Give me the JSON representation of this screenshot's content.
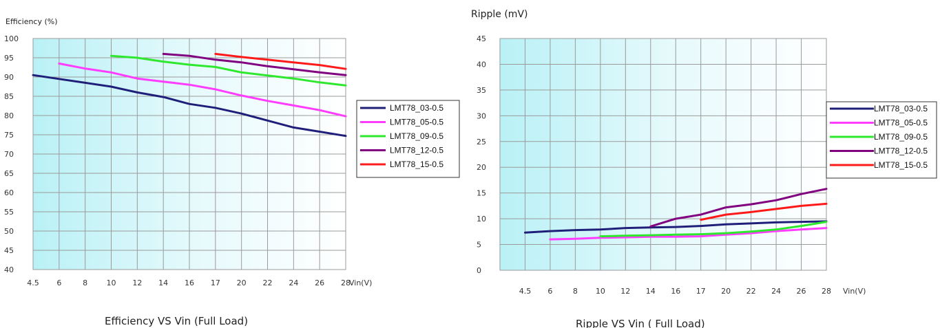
{
  "chart_data": [
    {
      "type": "line",
      "ylabel": "Efficiency (%)",
      "xlabel": "Vin(V)",
      "caption": "Efficiency VS Vin (Full Load)",
      "categories": [
        "4.5",
        "6",
        "8",
        "10",
        "12",
        "14",
        "16",
        "17",
        "20",
        "22",
        "24",
        "26",
        "28"
      ],
      "y_ticks": [
        100,
        95,
        90,
        85,
        80,
        75,
        70,
        65,
        60,
        55,
        50,
        45,
        40
      ],
      "ylim": [
        40,
        100
      ],
      "grid": true,
      "legend_position": "right",
      "series": [
        {
          "name": "LMT78_03-0.5",
          "color": "#1f1f7a",
          "x": [
            4.5,
            6,
            8,
            10,
            12,
            14,
            16,
            17,
            20,
            22,
            24,
            26,
            28
          ],
          "values": [
            90.5,
            89.5,
            88.5,
            87.5,
            86,
            84.8,
            83,
            82,
            80.5,
            78.7,
            76.9,
            75.8,
            74.7
          ]
        },
        {
          "name": "LMT78_05-0.5",
          "color": "#ff3cff",
          "x": [
            6,
            8,
            10,
            12,
            14,
            16,
            17,
            20,
            22,
            24,
            26,
            28
          ],
          "values": [
            93.5,
            92.2,
            91.2,
            89.6,
            88.8,
            88,
            86.8,
            85.2,
            83.8,
            82.6,
            81.4,
            79.8
          ]
        },
        {
          "name": "LMT78_09-0.5",
          "color": "#2ee82e",
          "x": [
            10,
            12,
            14,
            16,
            17,
            20,
            22,
            24,
            26,
            28
          ],
          "values": [
            95.5,
            95,
            94,
            93.2,
            92.6,
            91.2,
            90.4,
            89.6,
            88.6,
            87.8
          ]
        },
        {
          "name": "LMT78_12-0.5",
          "color": "#800080",
          "x": [
            14,
            16,
            17,
            20,
            22,
            24,
            26,
            28
          ],
          "values": [
            96,
            95.5,
            94.5,
            93.8,
            92.8,
            92,
            91.2,
            90.5
          ]
        },
        {
          "name": "LMT78_15-0.5",
          "color": "#ff1a1a",
          "x": [
            17,
            20,
            22,
            24,
            26,
            28
          ],
          "values": [
            96,
            95.2,
            94.5,
            93.8,
            93.1,
            92.1
          ]
        }
      ]
    },
    {
      "type": "line",
      "ylabel": "Ripple (mV)",
      "xlabel": "Vin(V)",
      "caption": "Ripple VS Vin ( Full Load)",
      "categories": [
        "4.5",
        "6",
        "8",
        "10",
        "12",
        "14",
        "16",
        "17",
        "20",
        "22",
        "24",
        "26",
        "28"
      ],
      "y_ticks": [
        45,
        40,
        35,
        30,
        25,
        20,
        15,
        10,
        5,
        0
      ],
      "ylim": [
        0,
        45
      ],
      "grid": true,
      "legend_position": "right",
      "series": [
        {
          "name": "LMT78_03-0.5",
          "color": "#1f1f7a",
          "x": [
            4.5,
            6,
            8,
            10,
            12,
            14,
            16,
            17,
            20,
            22,
            24,
            26,
            28
          ],
          "values": [
            7.3,
            7.6,
            7.8,
            7.9,
            8.2,
            8.3,
            8.4,
            8.6,
            8.9,
            9.1,
            9.3,
            9.4,
            9.5
          ]
        },
        {
          "name": "LMT78_05-0.5",
          "color": "#ff3cff",
          "x": [
            6,
            8,
            10,
            12,
            14,
            16,
            17,
            20,
            22,
            24,
            26,
            28
          ],
          "values": [
            6,
            6.1,
            6.3,
            6.4,
            6.5,
            6.5,
            6.6,
            6.9,
            7.2,
            7.6,
            7.9,
            8.2
          ]
        },
        {
          "name": "LMT78_09-0.5",
          "color": "#2ee82e",
          "x": [
            10,
            12,
            14,
            16,
            17,
            20,
            22,
            24,
            26,
            28
          ],
          "values": [
            6.6,
            6.7,
            6.8,
            6.9,
            7,
            7.2,
            7.5,
            7.9,
            8.6,
            9.4
          ]
        },
        {
          "name": "LMT78_12-0.5",
          "color": "#800080",
          "x": [
            14,
            16,
            17,
            20,
            22,
            24,
            26,
            28
          ],
          "values": [
            8.5,
            10,
            10.8,
            12.2,
            12.8,
            13.6,
            14.8,
            15.8
          ]
        },
        {
          "name": "LMT78_15-0.5",
          "color": "#ff1a1a",
          "x": [
            17,
            20,
            22,
            24,
            26,
            28
          ],
          "values": [
            9.8,
            10.8,
            11.3,
            11.9,
            12.5,
            12.9
          ]
        }
      ]
    }
  ]
}
